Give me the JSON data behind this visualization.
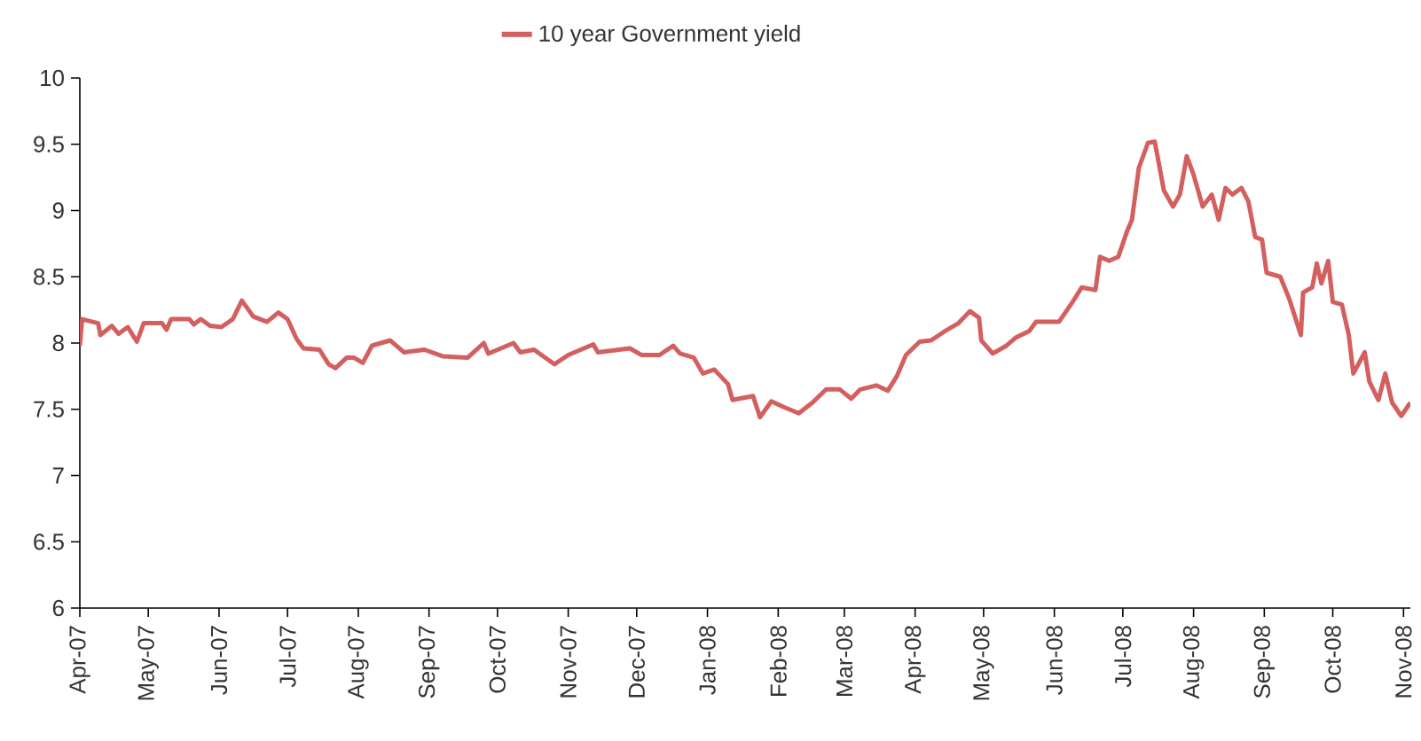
{
  "chart_data": {
    "type": "line",
    "x": [
      "2007-04-01",
      "2007-04-02",
      "2007-04-09",
      "2007-04-10",
      "2007-04-15",
      "2007-04-18",
      "2007-04-22",
      "2007-04-26",
      "2007-04-29",
      "2007-05-07",
      "2007-05-09",
      "2007-05-11",
      "2007-05-19",
      "2007-05-21",
      "2007-05-24",
      "2007-05-28",
      "2007-06-02",
      "2007-06-07",
      "2007-06-11",
      "2007-06-16",
      "2007-06-22",
      "2007-06-27",
      "2007-07-01",
      "2007-07-05",
      "2007-07-08",
      "2007-07-15",
      "2007-07-19",
      "2007-07-22",
      "2007-07-27",
      "2007-07-30",
      "2007-08-03",
      "2007-08-07",
      "2007-08-15",
      "2007-08-21",
      "2007-08-30",
      "2007-09-07",
      "2007-09-18",
      "2007-09-25",
      "2007-09-27",
      "2007-10-08",
      "2007-10-11",
      "2007-10-17",
      "2007-10-26",
      "2007-11-01",
      "2007-11-12",
      "2007-11-14",
      "2007-11-28",
      "2007-12-03",
      "2007-12-11",
      "2007-12-17",
      "2007-12-20",
      "2007-12-26",
      "2007-12-30",
      "2008-01-04",
      "2008-01-10",
      "2008-01-12",
      "2008-01-21",
      "2008-01-24",
      "2008-01-29",
      "2008-02-03",
      "2008-02-10",
      "2008-02-16",
      "2008-02-22",
      "2008-02-28",
      "2008-03-04",
      "2008-03-08",
      "2008-03-15",
      "2008-03-20",
      "2008-03-24",
      "2008-03-28",
      "2008-04-03",
      "2008-04-08",
      "2008-04-15",
      "2008-04-20",
      "2008-04-25",
      "2008-04-29",
      "2008-04-30",
      "2008-05-05",
      "2008-05-11",
      "2008-05-15",
      "2008-05-21",
      "2008-05-24",
      "2008-06-03",
      "2008-06-09",
      "2008-06-13",
      "2008-06-19",
      "2008-06-21",
      "2008-06-25",
      "2008-06-29",
      "2008-07-03",
      "2008-07-05",
      "2008-07-08",
      "2008-07-12",
      "2008-07-15",
      "2008-07-19",
      "2008-07-23",
      "2008-07-26",
      "2008-07-29",
      "2008-08-01",
      "2008-08-05",
      "2008-08-09",
      "2008-08-12",
      "2008-08-15",
      "2008-08-18",
      "2008-08-22",
      "2008-08-25",
      "2008-08-28",
      "2008-08-31",
      "2008-09-02",
      "2008-09-08",
      "2008-09-12",
      "2008-09-17",
      "2008-09-18",
      "2008-09-22",
      "2008-09-24",
      "2008-09-26",
      "2008-09-29",
      "2008-10-01",
      "2008-10-05",
      "2008-10-08",
      "2008-10-10",
      "2008-10-15",
      "2008-10-17",
      "2008-10-21",
      "2008-10-24",
      "2008-10-27",
      "2008-10-31",
      "2008-11-04"
    ],
    "series": [
      {
        "name": "10 year Government yield",
        "color": "#d35f5f",
        "values": [
          7.98,
          8.18,
          8.15,
          8.06,
          8.13,
          8.07,
          8.12,
          8.01,
          8.15,
          8.15,
          8.1,
          8.18,
          8.18,
          8.14,
          8.18,
          8.13,
          8.12,
          8.18,
          8.32,
          8.2,
          8.16,
          8.23,
          8.18,
          8.03,
          7.96,
          7.95,
          7.84,
          7.81,
          7.89,
          7.89,
          7.85,
          7.98,
          8.02,
          7.93,
          7.95,
          7.9,
          7.89,
          8.0,
          7.92,
          8.0,
          7.93,
          7.95,
          7.84,
          7.91,
          7.99,
          7.93,
          7.96,
          7.91,
          7.91,
          7.98,
          7.92,
          7.89,
          7.77,
          7.8,
          7.69,
          7.57,
          7.6,
          7.44,
          7.56,
          7.52,
          7.47,
          7.55,
          7.65,
          7.65,
          7.58,
          7.65,
          7.68,
          7.64,
          7.75,
          7.91,
          8.01,
          8.02,
          8.1,
          8.15,
          8.24,
          8.19,
          8.02,
          7.92,
          7.98,
          8.04,
          8.09,
          8.16,
          8.16,
          8.31,
          8.42,
          8.4,
          8.65,
          8.62,
          8.65,
          8.85,
          8.93,
          9.32,
          9.51,
          9.52,
          9.15,
          9.03,
          9.12,
          9.41,
          9.27,
          9.03,
          9.12,
          8.93,
          9.17,
          9.12,
          9.17,
          9.07,
          8.8,
          8.78,
          8.53,
          8.5,
          8.33,
          8.06,
          8.38,
          8.42,
          8.6,
          8.45,
          8.62,
          8.31,
          8.29,
          8.06,
          7.77,
          7.93,
          7.71,
          7.57,
          7.77,
          7.55,
          7.45,
          7.55
        ]
      }
    ],
    "xlim": [
      "2007-04-01",
      "2008-11-04"
    ],
    "xticks": [
      {
        "value": "2007-04-01",
        "label": "Apr-07"
      },
      {
        "value": "2007-05-01",
        "label": "May-07"
      },
      {
        "value": "2007-06-01",
        "label": "Jun-07"
      },
      {
        "value": "2007-07-01",
        "label": "Jul-07"
      },
      {
        "value": "2007-08-01",
        "label": "Aug-07"
      },
      {
        "value": "2007-09-01",
        "label": "Sep-07"
      },
      {
        "value": "2007-10-01",
        "label": "Oct-07"
      },
      {
        "value": "2007-11-01",
        "label": "Nov-07"
      },
      {
        "value": "2007-12-01",
        "label": "Dec-07"
      },
      {
        "value": "2008-01-01",
        "label": "Jan-08"
      },
      {
        "value": "2008-02-01",
        "label": "Feb-08"
      },
      {
        "value": "2008-03-01",
        "label": "Mar-08"
      },
      {
        "value": "2008-04-01",
        "label": "Apr-08"
      },
      {
        "value": "2008-05-01",
        "label": "May-08"
      },
      {
        "value": "2008-06-01",
        "label": "Jun-08"
      },
      {
        "value": "2008-07-01",
        "label": "Jul-08"
      },
      {
        "value": "2008-08-01",
        "label": "Aug-08"
      },
      {
        "value": "2008-09-01",
        "label": "Sep-08"
      },
      {
        "value": "2008-10-01",
        "label": "Oct-08"
      },
      {
        "value": "2008-11-01",
        "label": "Nov-08"
      }
    ],
    "ylim": [
      6,
      10
    ],
    "yticks": [
      6,
      6.5,
      7,
      7.5,
      8,
      8.5,
      9,
      9.5,
      10
    ],
    "legend": "top",
    "grid": false,
    "marker": "none",
    "line_style": "solid"
  }
}
